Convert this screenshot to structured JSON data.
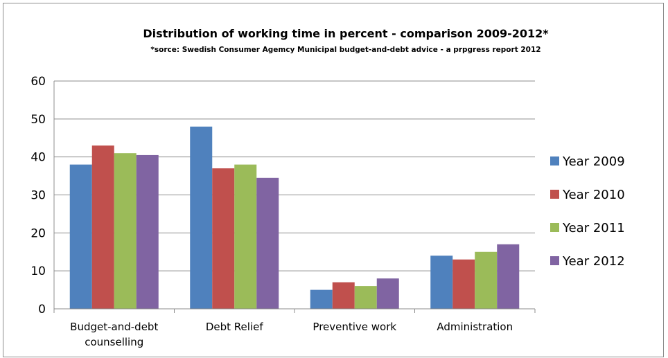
{
  "chart_data": {
    "type": "bar",
    "title": "Distribution of working time in percent - comparison 2009-2012*",
    "subtitle": "*sorce: Swedish Consumer Agemcy Municipal budget-and-debt advice - a prpgress report 2012",
    "categories": [
      [
        "Budget-and-debt",
        "counselling"
      ],
      [
        "Debt Relief"
      ],
      [
        "Preventive work"
      ],
      [
        "Administration"
      ]
    ],
    "series": [
      {
        "name": "Year 2009",
        "color": "#4F81BD",
        "values": [
          38,
          48,
          5,
          14
        ]
      },
      {
        "name": "Year 2010",
        "color": "#C0504D",
        "values": [
          43,
          37,
          7,
          13
        ]
      },
      {
        "name": "Year 2011",
        "color": "#9BBB59",
        "values": [
          41,
          38,
          6,
          15
        ]
      },
      {
        "name": "Year 2012",
        "color": "#8064A2",
        "values": [
          40.5,
          34.5,
          8,
          17
        ]
      }
    ],
    "yticks": [
      "0",
      "10",
      "20",
      "30",
      "40",
      "50",
      "60"
    ],
    "ylim": [
      0,
      60
    ],
    "grid": true,
    "legend_position": "right"
  }
}
